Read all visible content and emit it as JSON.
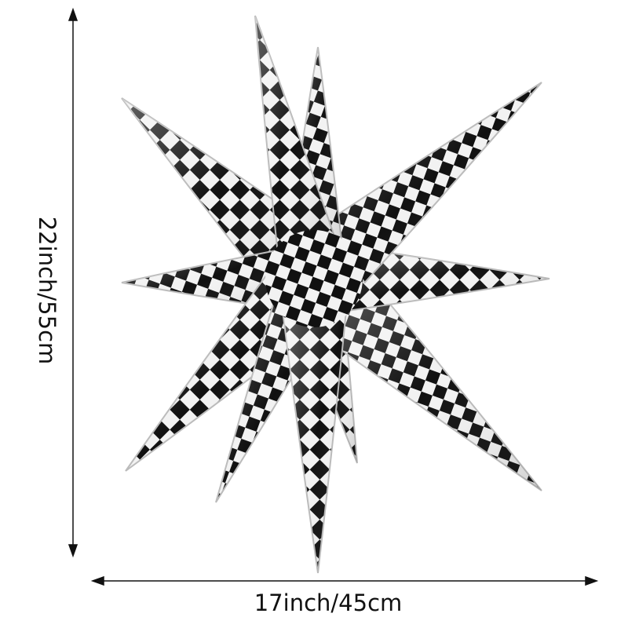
{
  "product": {
    "description_visible": "checkered starburst balloon",
    "colors": {
      "dark": "#111111",
      "light": "#f2f2f2",
      "silver": "#c8c8c8"
    }
  },
  "dimensions": {
    "height_label": "22inch/55cm",
    "width_label": "17inch/45cm"
  }
}
